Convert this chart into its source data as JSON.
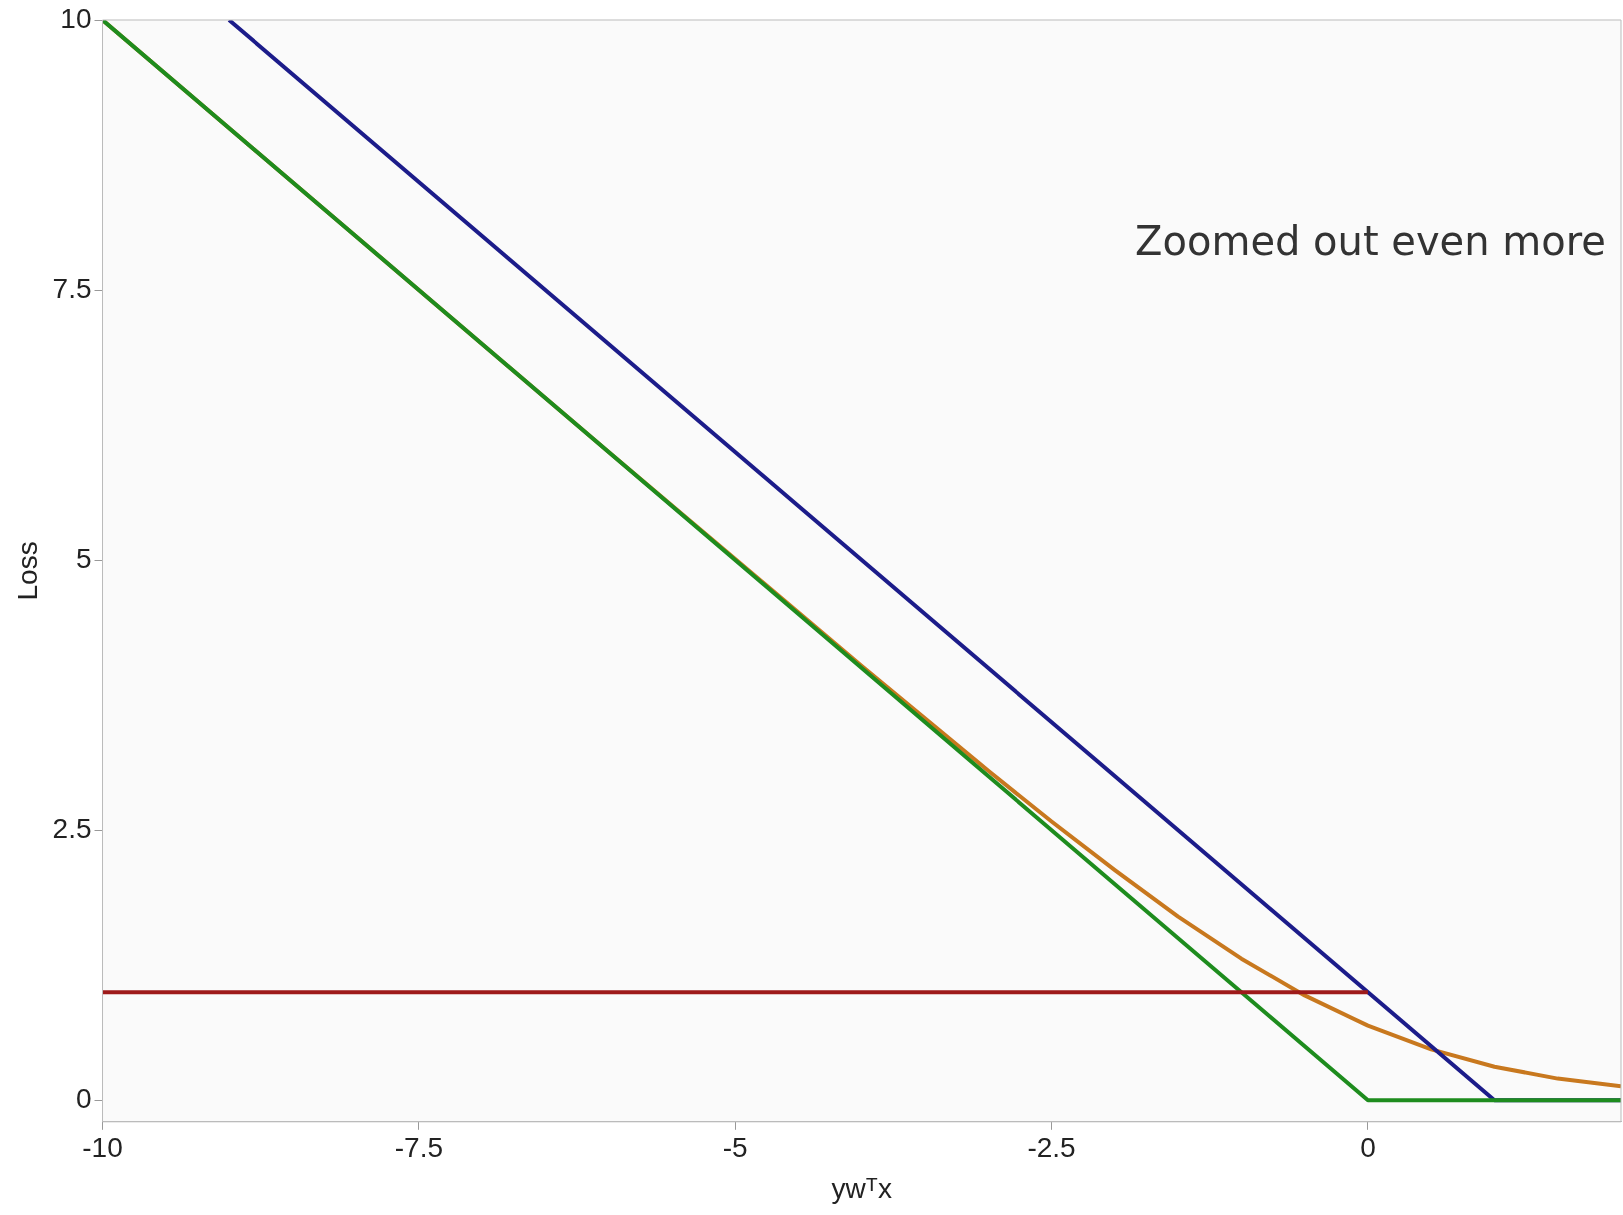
{
  "chart_data": {
    "type": "line",
    "xlabel": "ywᵀx",
    "ylabel": "Loss",
    "xlim": [
      -10,
      2
    ],
    "ylim": [
      -0.2,
      10
    ],
    "xticks": [
      -10,
      -7.5,
      -5,
      -2.5,
      0
    ],
    "yticks": [
      0,
      2.5,
      5,
      7.5,
      10
    ],
    "grid": false,
    "legend": false,
    "marker": "none",
    "line_style": "solid",
    "annotations": [
      "Zoomed out even more"
    ],
    "series": [
      {
        "color": "#9e1a1a",
        "x": [
          -10,
          0
        ],
        "values": [
          1,
          1
        ]
      },
      {
        "color": "#1e8c1e",
        "x": [
          -10,
          0,
          2
        ],
        "values": [
          10,
          0,
          0
        ]
      },
      {
        "color": "#1c1c8a",
        "x": [
          -9,
          1,
          2
        ],
        "values": [
          10,
          0,
          0
        ]
      },
      {
        "color": "#c8781e",
        "x": [
          -10,
          -8,
          -6,
          -5,
          -4,
          -3,
          -2.5,
          -2,
          -1.5,
          -1,
          -0.5,
          0,
          0.5,
          1,
          1.5,
          2
        ],
        "values": [
          10,
          8,
          6,
          5.01,
          4.02,
          3.05,
          2.58,
          2.13,
          1.7,
          1.31,
          0.97,
          0.69,
          0.47,
          0.31,
          0.2,
          0.13
        ]
      }
    ]
  }
}
